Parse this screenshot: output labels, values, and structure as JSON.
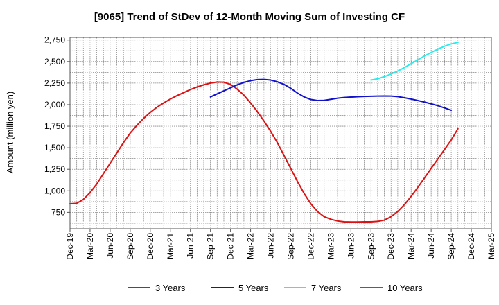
{
  "chart_data": {
    "type": "line",
    "title": "[9065]  Trend of StDev of 12-Month Moving Sum of Investing CF",
    "xlabel": "",
    "ylabel": "Amount (million yen)",
    "ylim": [
      560,
      2780
    ],
    "yticks": [
      750,
      1000,
      1250,
      1500,
      1750,
      2000,
      2250,
      2500,
      2750
    ],
    "ytick_labels": [
      "750",
      "1,000",
      "1,250",
      "1,500",
      "1,750",
      "2,000",
      "2,250",
      "2,500",
      "2,750"
    ],
    "xlim": [
      "2019-12",
      "2025-03"
    ],
    "xtick_labels": [
      "Dec-19",
      "Mar-20",
      "Jun-20",
      "Sep-20",
      "Dec-20",
      "Mar-21",
      "Jun-21",
      "Sep-21",
      "Dec-21",
      "Mar-22",
      "Jun-22",
      "Sep-22",
      "Dec-22",
      "Mar-23",
      "Jun-23",
      "Sep-23",
      "Dec-23",
      "Mar-24",
      "Jun-24",
      "Sep-24",
      "Dec-24",
      "Mar-25"
    ],
    "grid": true,
    "legend_position": "bottom",
    "series": [
      {
        "name": "3 Years",
        "color": "#dd1111",
        "points": [
          [
            "2019-12",
            850
          ],
          [
            "2020-01",
            855
          ],
          [
            "2020-02",
            900
          ],
          [
            "2020-03",
            980
          ],
          [
            "2020-04",
            1080
          ],
          [
            "2020-05",
            1200
          ],
          [
            "2020-06",
            1320
          ],
          [
            "2020-07",
            1440
          ],
          [
            "2020-08",
            1560
          ],
          [
            "2020-09",
            1670
          ],
          [
            "2020-10",
            1760
          ],
          [
            "2020-11",
            1840
          ],
          [
            "2020-12",
            1910
          ],
          [
            "2021-01",
            1970
          ],
          [
            "2021-02",
            2020
          ],
          [
            "2021-03",
            2065
          ],
          [
            "2021-04",
            2105
          ],
          [
            "2021-05",
            2140
          ],
          [
            "2021-06",
            2175
          ],
          [
            "2021-07",
            2205
          ],
          [
            "2021-08",
            2230
          ],
          [
            "2021-09",
            2250
          ],
          [
            "2021-10",
            2262
          ],
          [
            "2021-11",
            2260
          ],
          [
            "2021-12",
            2235
          ],
          [
            "2022-01",
            2180
          ],
          [
            "2022-02",
            2110
          ],
          [
            "2022-03",
            2020
          ],
          [
            "2022-04",
            1920
          ],
          [
            "2022-05",
            1810
          ],
          [
            "2022-06",
            1690
          ],
          [
            "2022-07",
            1560
          ],
          [
            "2022-08",
            1410
          ],
          [
            "2022-09",
            1260
          ],
          [
            "2022-10",
            1110
          ],
          [
            "2022-11",
            970
          ],
          [
            "2022-12",
            850
          ],
          [
            "2023-01",
            760
          ],
          [
            "2023-02",
            700
          ],
          [
            "2023-03",
            670
          ],
          [
            "2023-04",
            650
          ],
          [
            "2023-05",
            640
          ],
          [
            "2023-06",
            638
          ],
          [
            "2023-07",
            638
          ],
          [
            "2023-08",
            640
          ],
          [
            "2023-09",
            640
          ],
          [
            "2023-10",
            645
          ],
          [
            "2023-11",
            660
          ],
          [
            "2023-12",
            700
          ],
          [
            "2024-01",
            760
          ],
          [
            "2024-02",
            840
          ],
          [
            "2024-03",
            935
          ],
          [
            "2024-04",
            1040
          ],
          [
            "2024-05",
            1150
          ],
          [
            "2024-06",
            1260
          ],
          [
            "2024-07",
            1370
          ],
          [
            "2024-08",
            1480
          ],
          [
            "2024-09",
            1590
          ],
          [
            "2024-10",
            1720
          ]
        ]
      },
      {
        "name": "5 Years",
        "color": "#1111cc",
        "points": [
          [
            "2021-09",
            2090
          ],
          [
            "2021-10",
            2125
          ],
          [
            "2021-11",
            2160
          ],
          [
            "2021-12",
            2195
          ],
          [
            "2022-01",
            2230
          ],
          [
            "2022-02",
            2258
          ],
          [
            "2022-03",
            2278
          ],
          [
            "2022-04",
            2290
          ],
          [
            "2022-05",
            2292
          ],
          [
            "2022-06",
            2285
          ],
          [
            "2022-07",
            2265
          ],
          [
            "2022-08",
            2235
          ],
          [
            "2022-09",
            2190
          ],
          [
            "2022-10",
            2135
          ],
          [
            "2022-11",
            2090
          ],
          [
            "2022-12",
            2060
          ],
          [
            "2023-01",
            2048
          ],
          [
            "2023-02",
            2050
          ],
          [
            "2023-03",
            2062
          ],
          [
            "2023-04",
            2075
          ],
          [
            "2023-05",
            2083
          ],
          [
            "2023-06",
            2088
          ],
          [
            "2023-07",
            2092
          ],
          [
            "2023-08",
            2095
          ],
          [
            "2023-09",
            2097
          ],
          [
            "2023-10",
            2099
          ],
          [
            "2023-11",
            2100
          ],
          [
            "2023-12",
            2099
          ],
          [
            "2024-01",
            2093
          ],
          [
            "2024-02",
            2080
          ],
          [
            "2024-03",
            2065
          ],
          [
            "2024-04",
            2048
          ],
          [
            "2024-05",
            2030
          ],
          [
            "2024-06",
            2010
          ],
          [
            "2024-07",
            1988
          ],
          [
            "2024-08",
            1962
          ],
          [
            "2024-09",
            1935
          ]
        ]
      },
      {
        "name": "7 Years",
        "color": "#22eeee",
        "points": [
          [
            "2023-09",
            2285
          ],
          [
            "2023-10",
            2300
          ],
          [
            "2023-11",
            2325
          ],
          [
            "2023-12",
            2355
          ],
          [
            "2024-01",
            2390
          ],
          [
            "2024-02",
            2430
          ],
          [
            "2024-03",
            2475
          ],
          [
            "2024-04",
            2520
          ],
          [
            "2024-05",
            2565
          ],
          [
            "2024-06",
            2605
          ],
          [
            "2024-07",
            2645
          ],
          [
            "2024-08",
            2678
          ],
          [
            "2024-09",
            2705
          ],
          [
            "2024-10",
            2722
          ]
        ]
      },
      {
        "name": "10 Years",
        "color": "#228822",
        "points": []
      }
    ]
  }
}
